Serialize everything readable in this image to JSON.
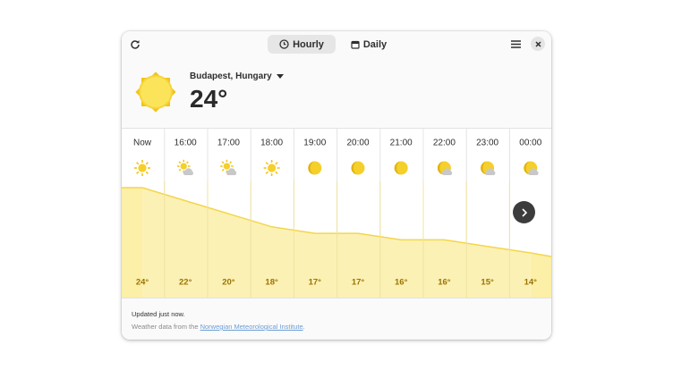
{
  "header": {
    "tabs": [
      "Hourly",
      "Daily"
    ]
  },
  "location": {
    "name": "Budapest, Hungary",
    "temperature": "24°"
  },
  "hourly": {
    "times": [
      "Now",
      "16:00",
      "17:00",
      "18:00",
      "19:00",
      "20:00",
      "21:00",
      "22:00",
      "23:00",
      "00:00"
    ],
    "temps": [
      {
        "value": 24,
        "label": "24°"
      },
      {
        "value": 22,
        "label": "22°"
      },
      {
        "value": 20,
        "label": "20°"
      },
      {
        "value": 18,
        "label": "18°"
      },
      {
        "value": 17,
        "label": "17°"
      },
      {
        "value": 17,
        "label": "17°"
      },
      {
        "value": 16,
        "label": "16°"
      },
      {
        "value": 16,
        "label": "16°"
      },
      {
        "value": 15,
        "label": "15°"
      },
      {
        "value": 14,
        "label": "14°"
      }
    ]
  },
  "footer": {
    "updated": "Updated just now.",
    "source_prefix": "Weather data from the",
    "source_link": "Norwegian Meteorological Institute",
    "source_suffix": "."
  }
}
